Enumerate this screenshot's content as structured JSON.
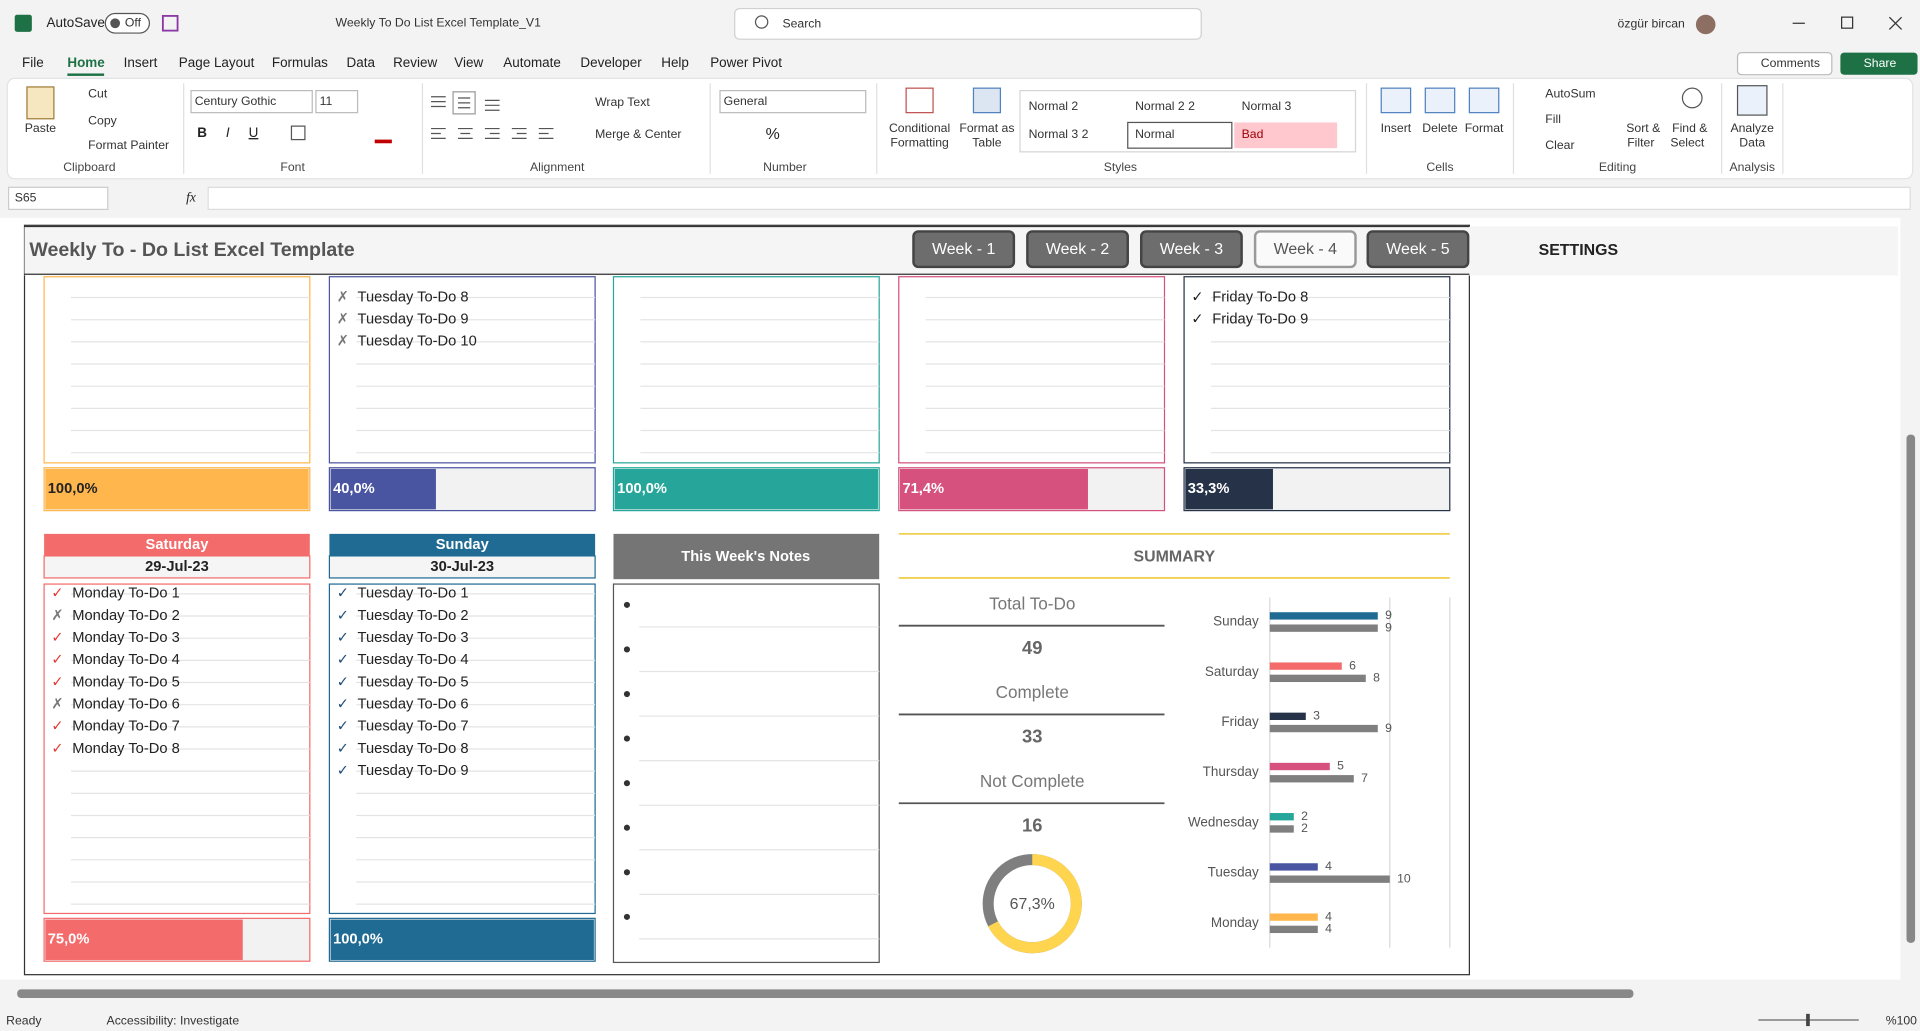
{
  "titlebar": {
    "autosave": "AutoSave",
    "toggle": "Off",
    "filename": "Weekly To Do List Excel Template_V1",
    "search": "Search",
    "user": "özgür bircan"
  },
  "tabs": [
    "File",
    "Home",
    "Insert",
    "Page Layout",
    "Formulas",
    "Data",
    "Review",
    "View",
    "Automate",
    "Developer",
    "Help",
    "Power Pivot"
  ],
  "active_tab_index": 1,
  "comments": "Comments",
  "share": "Share",
  "ribbon": {
    "clipboard": {
      "paste": "Paste",
      "cut": "Cut",
      "copy": "Copy",
      "format_painter": "Format Painter",
      "group": "Clipboard"
    },
    "font": {
      "name": "Century Gothic",
      "size": "11",
      "bold": "B",
      "italic": "I",
      "underline": "U",
      "group": "Font"
    },
    "alignment": {
      "wrap": "Wrap Text",
      "merge": "Merge & Center",
      "group": "Alignment"
    },
    "number": {
      "format": "General",
      "percent": "%",
      "group": "Number"
    },
    "styles": {
      "conditional": [
        "Conditional",
        "Formatting"
      ],
      "table": [
        "Format as",
        "Table"
      ],
      "gallery": [
        "Normal 2",
        "Normal 2 2",
        "Normal 3",
        "Normal 3 2",
        "Normal",
        "Bad"
      ],
      "group": "Styles"
    },
    "cells": {
      "insert": "Insert",
      "delete": "Delete",
      "format": "Format",
      "group": "Cells"
    },
    "editing": {
      "autosum": "AutoSum",
      "fill": "Fill",
      "clear": "Clear",
      "sort": [
        "Sort &",
        "Filter"
      ],
      "find": [
        "Find &",
        "Select"
      ],
      "group": "Editing"
    },
    "analysis": {
      "analyze": [
        "Analyze",
        "Data"
      ],
      "group": "Analysis"
    }
  },
  "formula_bar": {
    "name_box": "S65",
    "fx": "fx"
  },
  "sheet": {
    "title": "Weekly To - Do List Excel Template",
    "weeks": [
      "Week - 1",
      "Week - 2",
      "Week - 3",
      "Week - 4",
      "Week - 5"
    ],
    "active_week_index": 3,
    "settings": "SETTINGS",
    "top_panels": [
      {
        "color": "#ffb74d",
        "check_color": "#777777",
        "tasks": [],
        "progress": 100,
        "progress_label": "100,0%",
        "label_color": "#222222"
      },
      {
        "color": "#4a55a2",
        "check_color": "#777777",
        "tasks": [
          {
            "mark": "✗",
            "text": "Tuesday To-Do 8"
          },
          {
            "mark": "✗",
            "text": "Tuesday To-Do 9"
          },
          {
            "mark": "✗",
            "text": "Tuesday To-Do 10"
          }
        ],
        "progress": 40,
        "progress_label": "40,0%",
        "label_color": "#ffffff"
      },
      {
        "color": "#26a69a",
        "check_color": "#777777",
        "tasks": [],
        "progress": 100,
        "progress_label": "100,0%",
        "label_color": "#ffffff"
      },
      {
        "color": "#d6517d",
        "check_color": "#777777",
        "tasks": [],
        "progress": 71.4,
        "progress_label": "71,4%",
        "label_color": "#ffffff"
      },
      {
        "color": "#263248",
        "check_color": "#222222",
        "tasks": [
          {
            "mark": "✓",
            "text": "Friday To-Do 8"
          },
          {
            "mark": "✓",
            "text": "Friday To-Do 9"
          }
        ],
        "progress": 33.3,
        "progress_label": "33,3%",
        "label_color": "#ffffff"
      }
    ],
    "day_panels": [
      {
        "day": "Saturday",
        "date": "29-Jul-23",
        "color": "#f46b6b",
        "check_color": "#e53935",
        "tasks": [
          {
            "mark": "✓",
            "text": "Monday To-Do 1"
          },
          {
            "mark": "✗",
            "text": "Monday To-Do 2"
          },
          {
            "mark": "✓",
            "text": "Monday To-Do 3"
          },
          {
            "mark": "✓",
            "text": "Monday To-Do 4"
          },
          {
            "mark": "✓",
            "text": "Monday To-Do 5"
          },
          {
            "mark": "✗",
            "text": "Monday To-Do 6"
          },
          {
            "mark": "✓",
            "text": "Monday To-Do 7"
          },
          {
            "mark": "✓",
            "text": "Monday To-Do 8"
          }
        ],
        "progress": 75,
        "progress_label": "75,0%"
      },
      {
        "day": "Sunday",
        "date": "30-Jul-23",
        "color": "#1f6b94",
        "check_color": "#1f4e79",
        "tasks": [
          {
            "mark": "✓",
            "text": "Tuesday To-Do 1"
          },
          {
            "mark": "✓",
            "text": "Tuesday To-Do 2"
          },
          {
            "mark": "✓",
            "text": "Tuesday To-Do 3"
          },
          {
            "mark": "✓",
            "text": "Tuesday To-Do 4"
          },
          {
            "mark": "✓",
            "text": "Tuesday To-Do 5"
          },
          {
            "mark": "✓",
            "text": "Tuesday To-Do 6"
          },
          {
            "mark": "✓",
            "text": "Tuesday To-Do 7"
          },
          {
            "mark": "✓",
            "text": "Tuesday To-Do 8"
          },
          {
            "mark": "✓",
            "text": "Tuesday To-Do 9"
          }
        ],
        "progress": 100,
        "progress_label": "100,0%"
      }
    ],
    "notes": {
      "title": "This Week's Notes",
      "bullets": 8
    },
    "summary": {
      "title": "SUMMARY",
      "items": [
        {
          "label": "Total To-Do",
          "value": 49
        },
        {
          "label": "Complete",
          "value": 33
        },
        {
          "label": "Not Complete",
          "value": 16
        }
      ],
      "donut": {
        "value": 67.3,
        "label": "67,3%",
        "color": "#ffd54f",
        "rest_color": "#7f7f7f"
      }
    },
    "chart": {
      "type": "bar",
      "categories": [
        "Sunday",
        "Saturday",
        "Friday",
        "Thursday",
        "Wednesday",
        "Tuesday",
        "Monday"
      ],
      "xlim": [
        0,
        15
      ],
      "series": [
        {
          "colors": [
            "#1f6b94",
            "#f46b6b",
            "#263248",
            "#d6517d",
            "#26a69a",
            "#4a55a2",
            "#ffb74d"
          ],
          "values": [
            9,
            6,
            3,
            5,
            2,
            4,
            4
          ]
        },
        {
          "color": "#7f7f7f",
          "values": [
            9,
            8,
            9,
            7,
            2,
            10,
            4
          ]
        }
      ]
    }
  },
  "status": {
    "ready": "Ready",
    "accessibility": "Accessibility: Investigate",
    "zoom": "%100"
  }
}
